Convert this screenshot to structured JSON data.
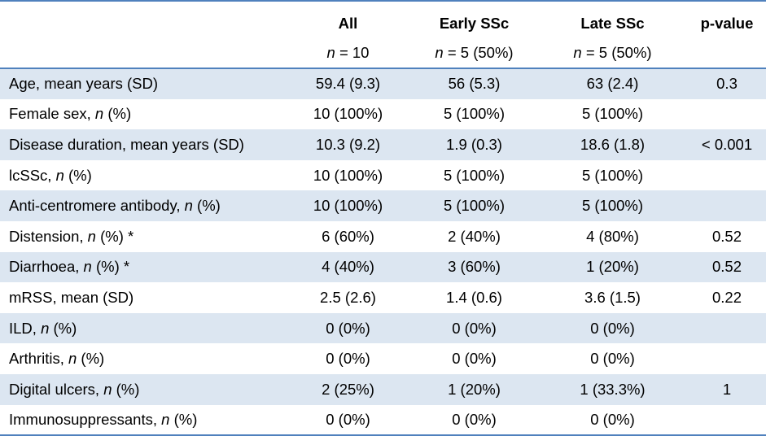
{
  "header": {
    "columns": [
      "All",
      "Early SSc",
      "Late SSc",
      "p-value"
    ],
    "n_label": "n",
    "n_values": [
      "= 10",
      "= 5 (50%)",
      "= 5 (50%)",
      ""
    ]
  },
  "rows": [
    {
      "label": "Age, mean years (SD)",
      "italic_part": "",
      "suffix": "",
      "all": "59.4 (9.3)",
      "early": "56 (5.3)",
      "late": "63 (2.4)",
      "p": "0.3"
    },
    {
      "label": "Female sex, ",
      "italic_part": "n",
      "suffix": " (%)",
      "all": "10 (100%)",
      "early": "5 (100%)",
      "late": "5 (100%)",
      "p": ""
    },
    {
      "label": "Disease duration, mean years (SD)",
      "italic_part": "",
      "suffix": "",
      "all": "10.3 (9.2)",
      "early": "1.9 (0.3)",
      "late": "18.6 (1.8)",
      "p": "< 0.001"
    },
    {
      "label": "lcSSc, ",
      "italic_part": "n",
      "suffix": " (%)",
      "all": "10 (100%)",
      "early": "5 (100%)",
      "late": "5 (100%)",
      "p": ""
    },
    {
      "label": "Anti-centromere antibody, ",
      "italic_part": "n",
      "suffix": " (%)",
      "all": "10 (100%)",
      "early": "5 (100%)",
      "late": "5 (100%)",
      "p": ""
    },
    {
      "label": "Distension, ",
      "italic_part": "n",
      "suffix": " (%) *",
      "all": "6 (60%)",
      "early": "2 (40%)",
      "late": "4 (80%)",
      "p": "0.52"
    },
    {
      "label": "Diarrhoea, ",
      "italic_part": "n",
      "suffix": " (%) *",
      "all": "4 (40%)",
      "early": "3 (60%)",
      "late": "1 (20%)",
      "p": "0.52"
    },
    {
      "label": "mRSS, mean (SD)",
      "italic_part": "",
      "suffix": "",
      "all": "2.5 (2.6)",
      "early": "1.4 (0.6)",
      "late": "3.6 (1.5)",
      "p": "0.22"
    },
    {
      "label": "ILD, ",
      "italic_part": "n",
      "suffix": " (%)",
      "all": "0 (0%)",
      "early": "0 (0%)",
      "late": "0 (0%)",
      "p": ""
    },
    {
      "label": "Arthritis, ",
      "italic_part": "n",
      "suffix": " (%)",
      "all": "0 (0%)",
      "early": "0 (0%)",
      "late": "0 (0%)",
      "p": ""
    },
    {
      "label": "Digital ulcers, ",
      "italic_part": "n",
      "suffix": " (%)",
      "all": "2 (25%)",
      "early": "1 (20%)",
      "late": "1 (33.3%)",
      "p": "1"
    },
    {
      "label": "Immunosuppressants, ",
      "italic_part": "n",
      "suffix": " (%)",
      "all": "0 (0%)",
      "early": "0 (0%)",
      "late": "0 (0%)",
      "p": ""
    }
  ],
  "colors": {
    "rule": "#4f81bd",
    "shade": "#dce6f1"
  }
}
